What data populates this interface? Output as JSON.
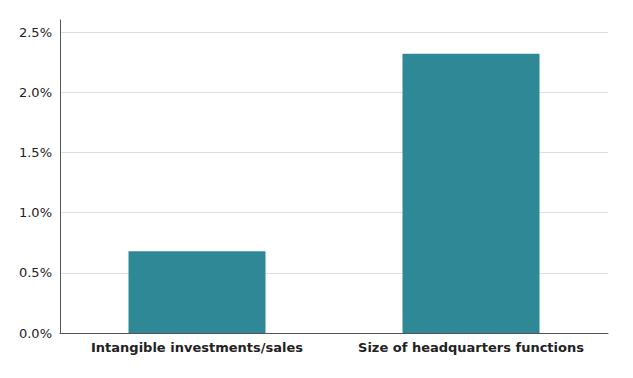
{
  "chart_data": {
    "type": "bar",
    "categories": [
      "Intangible investments/sales",
      "Size of headquarters functions"
    ],
    "values": [
      0.0068,
      0.0232
    ],
    "color": "#2e8896",
    "ylim": [
      0,
      0.026
    ],
    "yticks": [
      {
        "value": 0.0,
        "label": "0.0%"
      },
      {
        "value": 0.005,
        "label": "0.5%"
      },
      {
        "value": 0.01,
        "label": "1.0%"
      },
      {
        "value": 0.015,
        "label": "1.5%"
      },
      {
        "value": 0.02,
        "label": "2.0%"
      },
      {
        "value": 0.025,
        "label": "2.5%"
      }
    ],
    "grid": true
  }
}
